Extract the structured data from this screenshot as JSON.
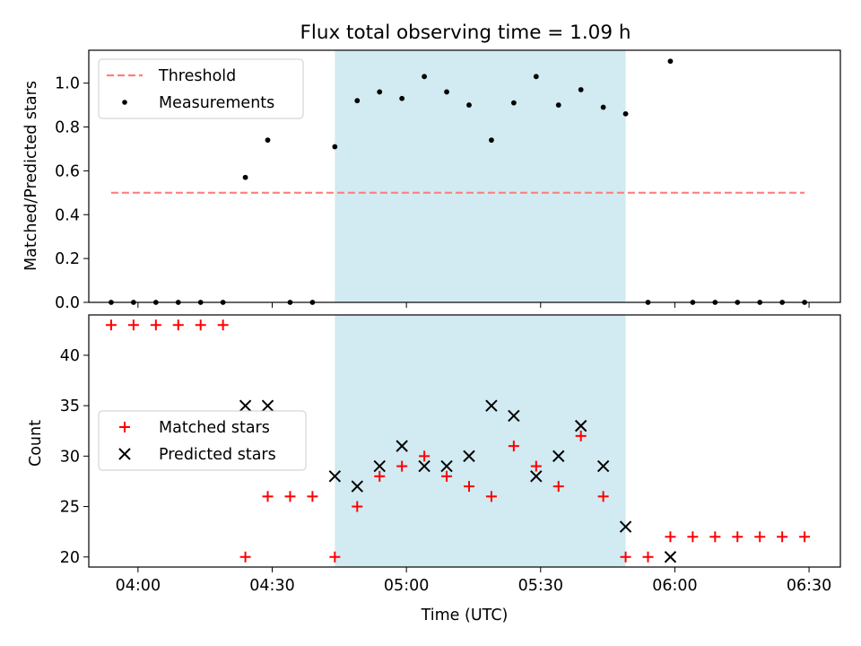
{
  "figure_title": "Flux total observing time = 1.09 h",
  "colors": {
    "threshold": "#ff7f7f",
    "measurement": "#000000",
    "matched": "#ff0000",
    "predicted": "#000000",
    "span": "#add8e6"
  },
  "chart_data": [
    {
      "type": "scatter",
      "title": "Flux total observing time = 1.09 h",
      "ylabel": "Matched/Predicted stars",
      "xlabel": "",
      "xlim": [
        "03:49",
        "06:37"
      ],
      "ylim": [
        0,
        1.15
      ],
      "yticks": [
        0.0,
        0.2,
        0.4,
        0.6,
        0.8,
        1.0
      ],
      "ytick_labels": [
        "0.0",
        "0.2",
        "0.4",
        "0.6",
        "0.8",
        "1.0"
      ],
      "shaded_span": [
        "04:44",
        "05:49"
      ],
      "legend": {
        "placement": "upper left",
        "entries": [
          "Threshold",
          "Measurements"
        ]
      },
      "series": [
        {
          "name": "Threshold",
          "kind": "dashed-line",
          "x": [
            "03:54",
            "06:29"
          ],
          "y": [
            0.5,
            0.5
          ]
        },
        {
          "name": "Measurements",
          "kind": "dot",
          "x": [
            "03:54",
            "03:59",
            "04:04",
            "04:09",
            "04:14",
            "04:19",
            "04:24",
            "04:29",
            "04:34",
            "04:39",
            "04:44",
            "04:49",
            "04:54",
            "04:59",
            "05:04",
            "05:09",
            "05:14",
            "05:19",
            "05:24",
            "05:29",
            "05:34",
            "05:39",
            "05:44",
            "05:49",
            "05:54",
            "05:59",
            "06:04",
            "06:09",
            "06:14",
            "06:19",
            "06:24",
            "06:29"
          ],
          "y": [
            0,
            0,
            0,
            0,
            0,
            0,
            0.57,
            0.74,
            0,
            0,
            0.71,
            0.92,
            0.96,
            0.93,
            1.03,
            0.96,
            0.9,
            0.74,
            0.91,
            1.03,
            0.9,
            0.97,
            0.89,
            0.86,
            0,
            1.1,
            0,
            0,
            0,
            0,
            0,
            0
          ]
        }
      ]
    },
    {
      "type": "scatter",
      "ylabel": "Count",
      "xlabel": "Time (UTC)",
      "xlim": [
        "03:49",
        "06:37"
      ],
      "ylim": [
        19,
        44
      ],
      "yticks": [
        20,
        25,
        30,
        35,
        40
      ],
      "ytick_labels": [
        "20",
        "25",
        "30",
        "35",
        "40"
      ],
      "xticks": [
        "04:00",
        "04:30",
        "05:00",
        "05:30",
        "06:00",
        "06:30"
      ],
      "shaded_span": [
        "04:44",
        "05:49"
      ],
      "legend": {
        "placement": "center left",
        "entries": [
          "Matched stars",
          "Predicted stars"
        ]
      },
      "series": [
        {
          "name": "Matched stars",
          "marker": "+",
          "x": [
            "03:54",
            "03:59",
            "04:04",
            "04:09",
            "04:14",
            "04:19",
            "04:24",
            "04:29",
            "04:34",
            "04:39",
            "04:44",
            "04:49",
            "04:54",
            "04:59",
            "05:04",
            "05:09",
            "05:14",
            "05:19",
            "05:24",
            "05:29",
            "05:34",
            "05:39",
            "05:44",
            "05:49",
            "05:54",
            "05:59",
            "06:04",
            "06:09",
            "06:14",
            "06:19",
            "06:24",
            "06:29"
          ],
          "y": [
            43,
            43,
            43,
            43,
            43,
            43,
            20,
            26,
            26,
            26,
            20,
            25,
            28,
            29,
            30,
            28,
            27,
            26,
            31,
            29,
            27,
            32,
            26,
            20,
            20,
            22,
            22,
            22,
            22,
            22,
            22,
            22
          ]
        },
        {
          "name": "Predicted stars",
          "marker": "x",
          "x": [
            "04:24",
            "04:29",
            "04:44",
            "04:49",
            "04:54",
            "04:59",
            "05:04",
            "05:09",
            "05:14",
            "05:19",
            "05:24",
            "05:29",
            "05:34",
            "05:39",
            "05:44",
            "05:49",
            "05:59"
          ],
          "y": [
            35,
            35,
            28,
            27,
            29,
            31,
            29,
            29,
            30,
            35,
            34,
            28,
            30,
            33,
            29,
            23,
            20
          ]
        }
      ]
    }
  ]
}
